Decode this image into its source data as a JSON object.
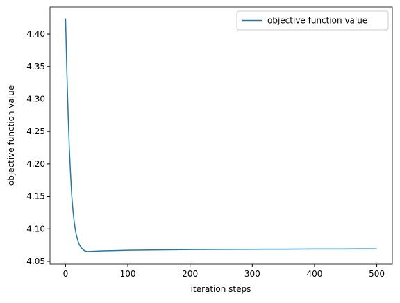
{
  "chart_data": {
    "type": "line",
    "xlabel": "iteration steps",
    "ylabel": "objective function value",
    "x": [
      0,
      2,
      4,
      6,
      8,
      10,
      12,
      14,
      16,
      18,
      20,
      22,
      25,
      28,
      31,
      35,
      40,
      50,
      60,
      80,
      100,
      150,
      200,
      250,
      300,
      350,
      400,
      450,
      500
    ],
    "series": [
      {
        "name": "objective function value",
        "color": "#1f77b4",
        "values": [
          4.424,
          4.345,
          4.28,
          4.225,
          4.185,
          4.15,
          4.127,
          4.11,
          4.097,
          4.088,
          4.081,
          4.076,
          4.071,
          4.068,
          4.066,
          4.065,
          4.0652,
          4.0656,
          4.066,
          4.0665,
          4.067,
          4.0675,
          4.068,
          4.0683,
          4.0685,
          4.0686,
          4.0688,
          4.0689,
          4.069
        ]
      }
    ],
    "xlim": [
      -25,
      525
    ],
    "xticks": [
      0,
      100,
      200,
      300,
      400,
      500
    ],
    "ylim": [
      4.0457,
      4.4418
    ],
    "yticks": [
      4.05,
      {
        "value": 4.1,
        "label": "4.10"
      },
      4.15,
      {
        "value": 4.2,
        "label": "4.20"
      },
      4.25,
      {
        "value": 4.3,
        "label": "4.30"
      },
      4.35,
      {
        "value": 4.4,
        "label": "4.40"
      }
    ],
    "legend": "upper right"
  }
}
